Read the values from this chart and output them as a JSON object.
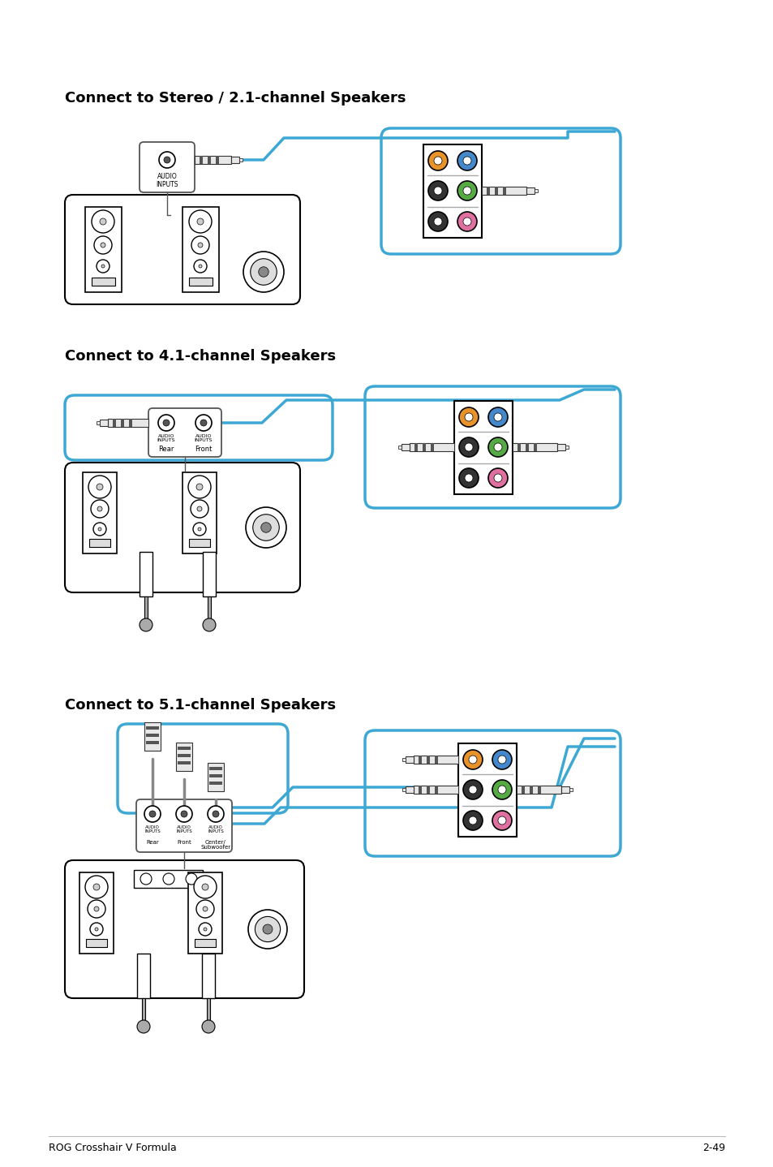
{
  "bg_color": "#ffffff",
  "page_width": 9.54,
  "page_height": 14.38,
  "title1": "Connect to Stereo / 2.1-channel Speakers",
  "title2": "Connect to 4.1-channel Speakers",
  "title3": "Connect to 5.1-channel Speakers",
  "footer_left": "ROG Crosshair V Formula",
  "footer_right": "2-49",
  "blue_color": "#3da8d4",
  "black_color": "#000000",
  "orange_color": "#e8922a",
  "blue_port_color": "#4488cc",
  "green_color": "#55aa44",
  "pink_color": "#e070a0",
  "dark_color": "#333333",
  "gray_color": "#888888",
  "panel_ec": "#555555"
}
